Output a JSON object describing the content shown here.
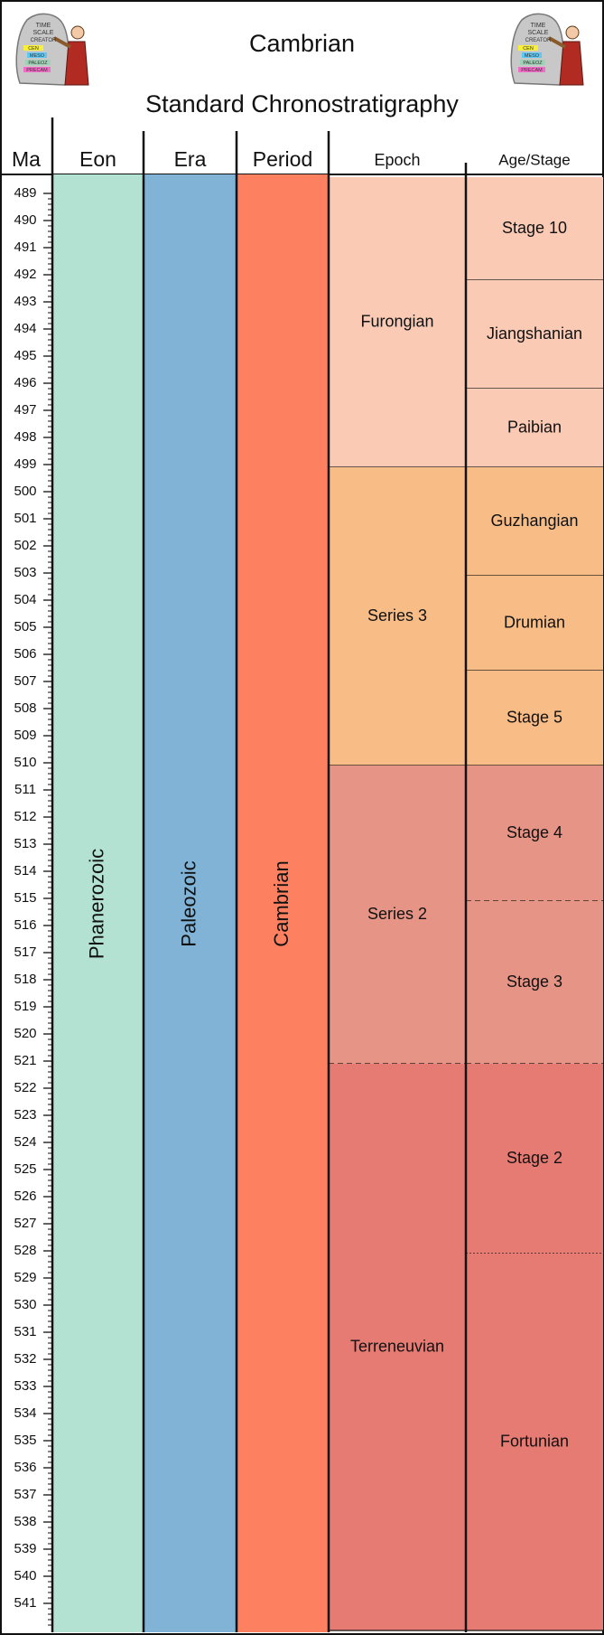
{
  "title": "Cambrian",
  "subtitle": "Standard Chronostratigraphy",
  "logo_text": [
    "TIME",
    "SCALE",
    "CREATOR",
    "CEN",
    "MESO",
    "PALEOZ",
    "PRECAM"
  ],
  "axis": {
    "label": "Ma",
    "min": 489,
    "max": 541
  },
  "columns": [
    {
      "key": "eon",
      "label": "Eon"
    },
    {
      "key": "era",
      "label": "Era"
    },
    {
      "key": "period",
      "label": "Period"
    },
    {
      "key": "epoch",
      "label": "Epoch"
    },
    {
      "key": "stage",
      "label": "Age/Stage"
    }
  ],
  "units": {
    "eon": [
      {
        "name": "Phanerozoic",
        "color": "#b4e2d2",
        "orientation": "vertical"
      }
    ],
    "era": [
      {
        "name": "Paleozoic",
        "color": "#80b3d5",
        "orientation": "vertical"
      }
    ],
    "period": [
      {
        "name": "Cambrian",
        "color": "#fd8060",
        "orientation": "vertical"
      }
    ],
    "epoch": [
      {
        "name": "Furongian",
        "top": 488.4,
        "base": 499.1,
        "color": "#facab5"
      },
      {
        "name": "Series 3",
        "top": 499.1,
        "base": 510.1,
        "color": "#f8bc87"
      },
      {
        "name": "Series 2",
        "top": 510.1,
        "base": 521.1,
        "color": "#e69486",
        "base_boundary": "dashed"
      },
      {
        "name": "Terreneuvian",
        "top": 521.1,
        "base": 542.0,
        "color": "#e67b74"
      }
    ],
    "stage": [
      {
        "name": "Stage 10",
        "top": 488.4,
        "base": 492.2,
        "color": "#facab5"
      },
      {
        "name": "Jiangshanian",
        "top": 492.2,
        "base": 496.2,
        "color": "#facab5"
      },
      {
        "name": "Paibian",
        "top": 496.2,
        "base": 499.1,
        "color": "#facab5"
      },
      {
        "name": "Guzhangian",
        "top": 499.1,
        "base": 503.1,
        "color": "#f8bc87"
      },
      {
        "name": "Drumian",
        "top": 503.1,
        "base": 506.6,
        "color": "#f8bc87"
      },
      {
        "name": "Stage 5",
        "top": 506.6,
        "base": 510.1,
        "color": "#f8bc87"
      },
      {
        "name": "Stage 4",
        "top": 510.1,
        "base": 515.1,
        "color": "#e69486",
        "base_boundary": "dashed"
      },
      {
        "name": "Stage 3",
        "top": 515.1,
        "base": 521.1,
        "color": "#e69486",
        "base_boundary": "dashed"
      },
      {
        "name": "Stage 2",
        "top": 521.1,
        "base": 528.1,
        "color": "#e67b74",
        "base_boundary": "dotted"
      },
      {
        "name": "Fortunian",
        "top": 528.1,
        "base": 542.0,
        "color": "#e67b74"
      }
    ]
  }
}
